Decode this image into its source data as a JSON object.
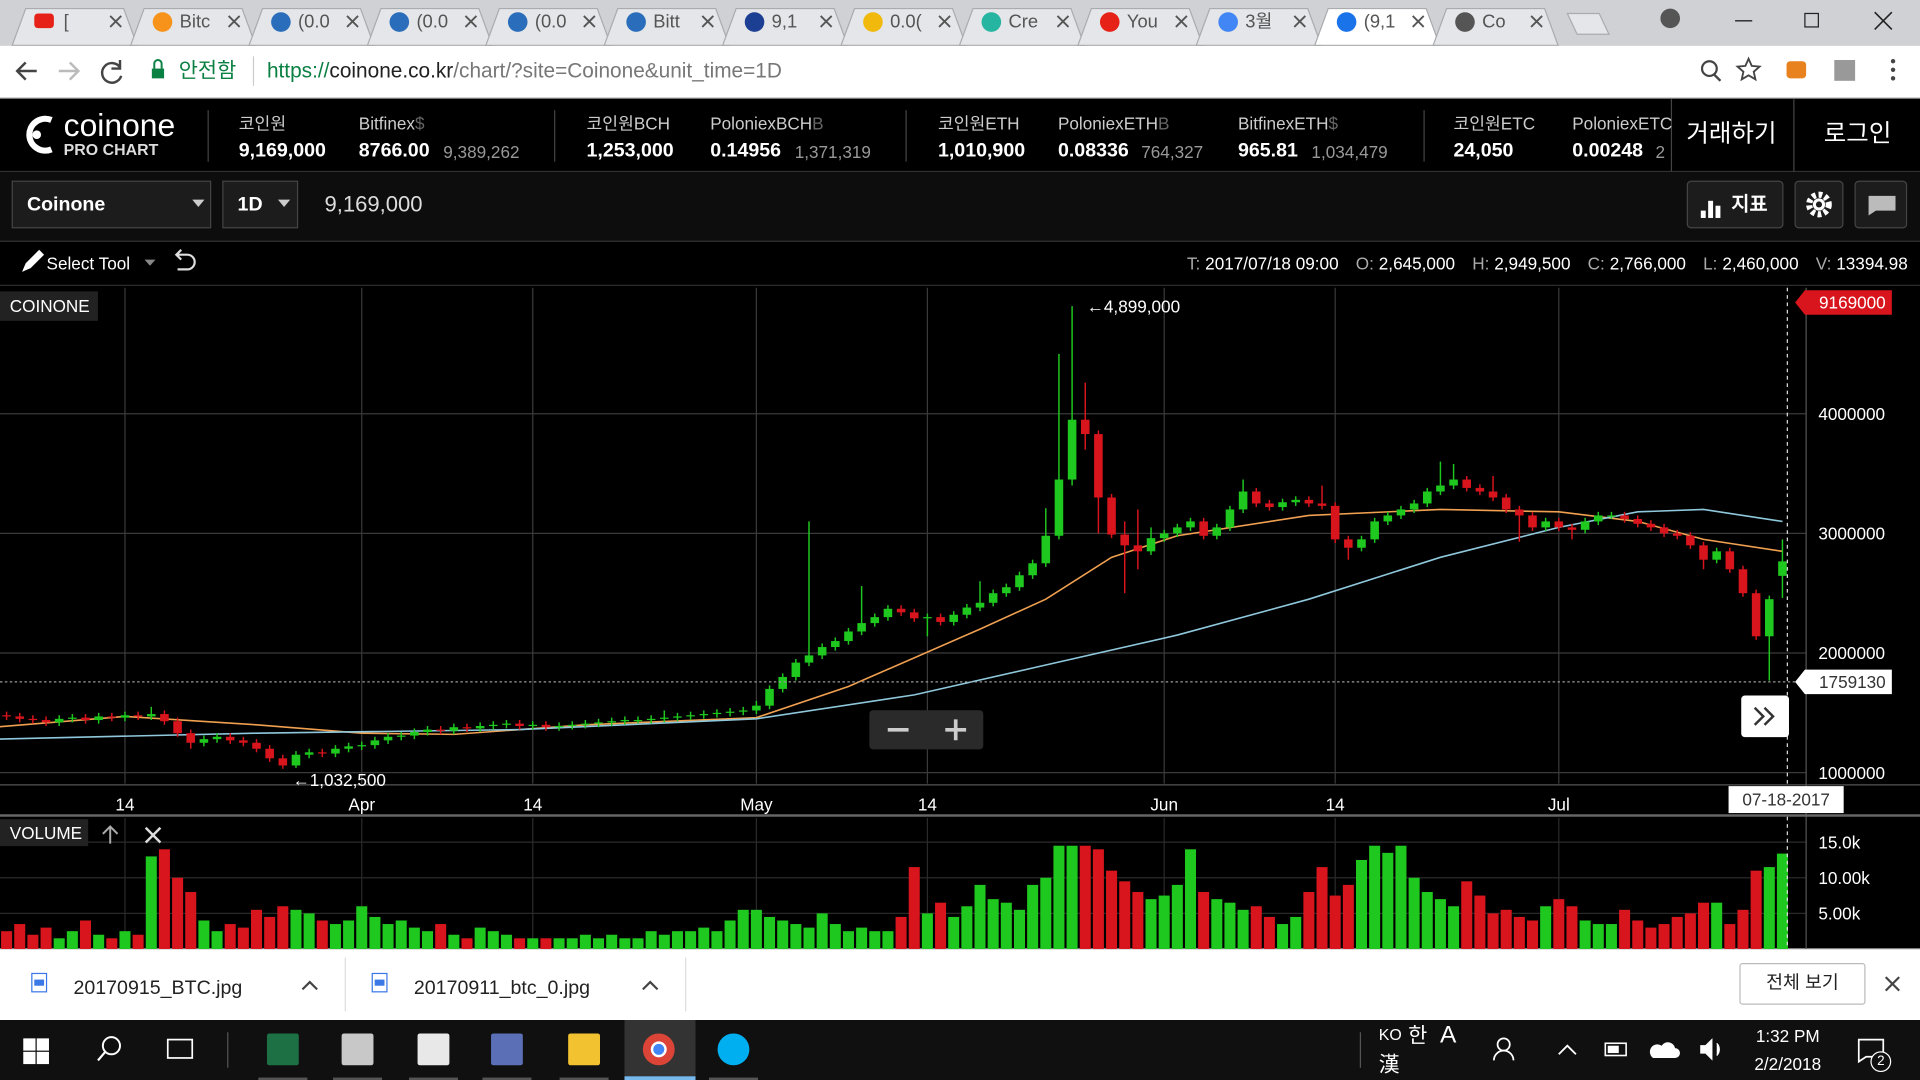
{
  "browser": {
    "tabs": [
      "[",
      "Bitc",
      "(0.0",
      "(0.0",
      "(0.0",
      "Bitt",
      "9,1",
      "0.0(",
      "Cre",
      "You",
      "3월",
      "(9,1",
      "Co"
    ],
    "secure_label": "안전함",
    "url_scheme": "https://",
    "url_host": "coinone.co.kr",
    "url_path": "/chart/?site=Coinone&unit_time=1D"
  },
  "header": {
    "logo": "coinone",
    "sublogo": "PRO CHART",
    "tickers": [
      {
        "name": "코인원",
        "price": "9,169,000"
      },
      {
        "name": "Bitfinex",
        "unit": "$",
        "price": "8766.00",
        "alt": "9,389,262"
      },
      {
        "name": "코인원BCH",
        "price": "1,253,000"
      },
      {
        "name": "PoloniexBCH",
        "unit": "B",
        "price": "0.14956",
        "alt": "1,371,319"
      },
      {
        "name": "코인원ETH",
        "price": "1,010,900"
      },
      {
        "name": "PoloniexETH",
        "unit": "B",
        "price": "0.08336",
        "alt": "764,327"
      },
      {
        "name": "BitfinexETH",
        "unit": "$",
        "price": "965.81",
        "alt": "1,034,479"
      },
      {
        "name": "코인원ETC",
        "price": "24,050"
      },
      {
        "name": "PoloniexETC",
        "price": "0.00248",
        "alt": "2"
      }
    ],
    "trade": "거래하기",
    "login": "로그인"
  },
  "toolbar": {
    "exchange": "Coinone",
    "interval": "1D",
    "price": "9,169,000",
    "indicator": "지표"
  },
  "tools": {
    "select": "Select Tool",
    "info": [
      {
        "key": "T:",
        "value": "2017/07/18 09:00"
      },
      {
        "key": "O:",
        "value": "2,645,000"
      },
      {
        "key": "H:",
        "value": "2,949,500"
      },
      {
        "key": "C:",
        "value": "2,766,000"
      },
      {
        "key": "L:",
        "value": "2,460,000"
      },
      {
        "key": "V:",
        "value": "13394.98"
      }
    ]
  },
  "chart_data": {
    "type": "candlestick",
    "legend": "COINONE",
    "volume_label": "VOLUME",
    "up_color": "#1fc81f",
    "down_color": "#d8141c",
    "xlim": [
      0.5,
      137.8
    ],
    "xticks": [
      {
        "value": 10,
        "label": "14"
      },
      {
        "value": 28,
        "label": "Apr"
      },
      {
        "value": 41,
        "label": "14"
      },
      {
        "value": 58,
        "label": "May"
      },
      {
        "value": 71,
        "label": "14"
      },
      {
        "value": 89,
        "label": "Jun"
      },
      {
        "value": 102,
        "label": "14"
      },
      {
        "value": 119,
        "label": "Jul"
      }
    ],
    "ylim": [
      908000,
      5053000
    ],
    "yticks": [
      1000000,
      2000000,
      3000000,
      4000000
    ],
    "grid": true,
    "open": [
      1470000,
      1480000,
      1470000,
      1450000,
      1440000,
      1420000,
      1450000,
      1460000,
      1440000,
      1470000,
      1460000,
      1480000,
      1470000,
      1490000,
      1430000,
      1330000,
      1250000,
      1280000,
      1300000,
      1270000,
      1250000,
      1200000,
      1120000,
      1060000,
      1150000,
      1170000,
      1160000,
      1200000,
      1220000,
      1230000,
      1270000,
      1300000,
      1310000,
      1340000,
      1360000,
      1350000,
      1380000,
      1370000,
      1390000,
      1400000,
      1410000,
      1390000,
      1400000,
      1380000,
      1390000,
      1400000,
      1410000,
      1420000,
      1430000,
      1440000,
      1440000,
      1450000,
      1460000,
      1470000,
      1480000,
      1490000,
      1500000,
      1510000,
      1520000,
      1560000,
      1700000,
      1800000,
      1920000,
      1980000,
      2050000,
      2100000,
      2180000,
      2250000,
      2300000,
      2370000,
      2340000,
      2290000,
      2300000,
      2260000,
      2320000,
      2380000,
      2420000,
      2500000,
      2550000,
      2650000,
      2750000,
      2980000,
      3450000,
      3950000,
      3830000,
      3300000,
      2990000,
      2900000,
      2850000,
      2960000,
      3000000,
      3050000,
      3100000,
      2980000,
      3050000,
      3200000,
      3350000,
      3250000,
      3220000,
      3260000,
      3280000,
      3250000,
      3230000,
      2950000,
      2880000,
      2950000,
      3100000,
      3150000,
      3200000,
      3250000,
      3350000,
      3400000,
      3450000,
      3380000,
      3350000,
      3300000,
      3200000,
      3150000,
      3050000,
      3100000,
      3050000,
      3030000,
      3100000,
      3150000,
      3150000,
      3120000,
      3080000,
      3050000,
      3000000,
      2980000,
      2900000,
      2780000,
      2850000,
      2700000,
      2500000,
      2140000,
      2645000
    ],
    "high": [
      1510000,
      1510000,
      1500000,
      1480000,
      1470000,
      1480000,
      1490000,
      1490000,
      1500000,
      1500000,
      1510000,
      1510000,
      1550000,
      1520000,
      1460000,
      1360000,
      1310000,
      1330000,
      1330000,
      1300000,
      1280000,
      1230000,
      1150000,
      1180000,
      1200000,
      1200000,
      1230000,
      1250000,
      1260000,
      1300000,
      1330000,
      1340000,
      1370000,
      1390000,
      1390000,
      1410000,
      1410000,
      1420000,
      1430000,
      1440000,
      1440000,
      1430000,
      1430000,
      1420000,
      1430000,
      1440000,
      1450000,
      1460000,
      1470000,
      1470000,
      1480000,
      1520000,
      1500000,
      1510000,
      1520000,
      1530000,
      1540000,
      1550000,
      1600000,
      1730000,
      1830000,
      1950000,
      3100000,
      2080000,
      2130000,
      2210000,
      2560000,
      2330000,
      2400000,
      2400000,
      2370000,
      2330000,
      2330000,
      2350000,
      2410000,
      2600000,
      2530000,
      2580000,
      2680000,
      2780000,
      3210000,
      4500000,
      4899000,
      4260000,
      3860000,
      3330000,
      3100000,
      3200000,
      3050000,
      3030000,
      3080000,
      3130000,
      3130000,
      3080000,
      3230000,
      3450000,
      3380000,
      3280000,
      3290000,
      3310000,
      3310000,
      3400000,
      3260000,
      2980000,
      2980000,
      3130000,
      3180000,
      3230000,
      3280000,
      3380000,
      3600000,
      3580000,
      3480000,
      3410000,
      3480000,
      3330000,
      3230000,
      3180000,
      3130000,
      3130000,
      3080000,
      3130000,
      3180000,
      3180000,
      3180000,
      3150000,
      3110000,
      3080000,
      3030000,
      3010000,
      2930000,
      2880000,
      2880000,
      2730000,
      2530000,
      2480000,
      2949500
    ],
    "low": [
      1440000,
      1440000,
      1420000,
      1410000,
      1390000,
      1390000,
      1420000,
      1410000,
      1410000,
      1430000,
      1430000,
      1440000,
      1440000,
      1400000,
      1300000,
      1200000,
      1220000,
      1250000,
      1240000,
      1220000,
      1170000,
      1090000,
      1032500,
      1040000,
      1120000,
      1130000,
      1130000,
      1170000,
      1190000,
      1200000,
      1240000,
      1270000,
      1280000,
      1310000,
      1320000,
      1320000,
      1340000,
      1340000,
      1360000,
      1370000,
      1360000,
      1360000,
      1350000,
      1350000,
      1360000,
      1370000,
      1380000,
      1390000,
      1400000,
      1410000,
      1410000,
      1420000,
      1430000,
      1440000,
      1450000,
      1460000,
      1470000,
      1480000,
      1490000,
      1530000,
      1670000,
      1770000,
      1890000,
      1950000,
      2020000,
      2070000,
      2150000,
      2220000,
      2270000,
      2310000,
      2260000,
      2140000,
      2230000,
      2230000,
      2290000,
      2350000,
      2390000,
      2470000,
      2520000,
      2620000,
      2720000,
      2950000,
      3400000,
      3700000,
      3000000,
      2960000,
      2500000,
      2700000,
      2820000,
      2930000,
      2970000,
      3020000,
      2950000,
      2950000,
      3020000,
      3170000,
      3220000,
      3190000,
      3190000,
      3230000,
      3220000,
      3200000,
      2920000,
      2780000,
      2850000,
      2920000,
      3070000,
      3120000,
      3170000,
      3220000,
      3320000,
      3370000,
      3350000,
      3320000,
      3270000,
      3170000,
      2930000,
      3020000,
      3020000,
      3020000,
      2950000,
      3000000,
      3070000,
      3120000,
      3090000,
      3050000,
      3020000,
      2970000,
      2950000,
      2870000,
      2700000,
      2750000,
      2670000,
      2470000,
      2110000,
      1770000,
      2460000
    ],
    "close": [
      1480000,
      1470000,
      1450000,
      1440000,
      1420000,
      1450000,
      1460000,
      1440000,
      1470000,
      1460000,
      1480000,
      1470000,
      1490000,
      1430000,
      1330000,
      1250000,
      1280000,
      1300000,
      1270000,
      1250000,
      1200000,
      1120000,
      1060000,
      1150000,
      1170000,
      1160000,
      1200000,
      1220000,
      1230000,
      1270000,
      1300000,
      1310000,
      1340000,
      1360000,
      1350000,
      1380000,
      1370000,
      1390000,
      1400000,
      1410000,
      1390000,
      1400000,
      1380000,
      1390000,
      1400000,
      1410000,
      1420000,
      1430000,
      1440000,
      1440000,
      1450000,
      1460000,
      1470000,
      1480000,
      1490000,
      1500000,
      1510000,
      1520000,
      1560000,
      1700000,
      1800000,
      1920000,
      1980000,
      2050000,
      2100000,
      2180000,
      2250000,
      2300000,
      2370000,
      2340000,
      2290000,
      2300000,
      2260000,
      2320000,
      2380000,
      2420000,
      2500000,
      2550000,
      2650000,
      2750000,
      2980000,
      3450000,
      3950000,
      3830000,
      3300000,
      2990000,
      2900000,
      2850000,
      2960000,
      3000000,
      3050000,
      3100000,
      2980000,
      3050000,
      3200000,
      3350000,
      3250000,
      3220000,
      3260000,
      3280000,
      3250000,
      3230000,
      2950000,
      2880000,
      2950000,
      3100000,
      3150000,
      3200000,
      3250000,
      3350000,
      3400000,
      3450000,
      3380000,
      3350000,
      3300000,
      3200000,
      3150000,
      3050000,
      3100000,
      3050000,
      3030000,
      3100000,
      3150000,
      3150000,
      3120000,
      3080000,
      3050000,
      3000000,
      2980000,
      2900000,
      2780000,
      2850000,
      2700000,
      2500000,
      2140000,
      2450000,
      2766000
    ],
    "series": [
      {
        "color": "#f0a050",
        "x": [
          0,
          10,
          20,
          28,
          35,
          45,
          58,
          65,
          75,
          80,
          85,
          90,
          100,
          110,
          119,
          125,
          130,
          136
        ],
        "values": [
          1380000,
          1470000,
          1400000,
          1330000,
          1320000,
          1400000,
          1460000,
          1720000,
          2200000,
          2450000,
          2800000,
          2980000,
          3150000,
          3200000,
          3180000,
          3100000,
          2950000,
          2850000
        ]
      },
      {
        "color": "#8fc8dc",
        "x": [
          0,
          20,
          40,
          58,
          70,
          80,
          90,
          100,
          110,
          119,
          125,
          130,
          136
        ],
        "values": [
          1280000,
          1330000,
          1360000,
          1450000,
          1650000,
          1900000,
          2150000,
          2450000,
          2800000,
          3050000,
          3180000,
          3200000,
          3100000
        ]
      }
    ],
    "annotations": [
      "←4,899,000",
      "←1,032,500"
    ],
    "last_price": 9169000,
    "crosshair_price": 1759130,
    "crosshair_date": "07-18-2017",
    "volume": [
      1500,
      2500,
      3500,
      2000,
      3000,
      1500,
      2500,
      4000,
      2000,
      1500,
      2500,
      2000,
      13000,
      14000,
      10000,
      8000,
      4000,
      2500,
      3500,
      3000,
      5500,
      4500,
      6000,
      5500,
      5000,
      4000,
      3500,
      4000,
      6000,
      4500,
      3500,
      4000,
      3000,
      2500,
      3500,
      2000,
      1500,
      3000,
      2500,
      2000,
      1500,
      1500,
      1500,
      1500,
      1500,
      2000,
      1500,
      2000,
      1500,
      1500,
      2500,
      2000,
      2500,
      2500,
      3000,
      2500,
      4000,
      5500,
      5500,
      4500,
      4000,
      3500,
      3000,
      5000,
      3500,
      2500,
      3000,
      2500,
      2500,
      4500,
      11500,
      5000,
      6500,
      4500,
      6000,
      9000,
      7000,
      6500,
      5500,
      9000,
      10000,
      14500,
      14500,
      14500,
      14000,
      11000,
      9500,
      8000,
      7000,
      7500,
      9000,
      14000,
      8000,
      7000,
      6500,
      5500,
      6000,
      4500,
      3500,
      4500,
      8000,
      11500,
      7500,
      9000,
      12500,
      14500,
      13500,
      14500,
      10000,
      8000,
      7000,
      6000,
      9500,
      7500,
      5000,
      5500,
      4500,
      4000,
      6000,
      7000,
      6000,
      4000,
      3500,
      3500,
      5500,
      4000,
      3000,
      3500,
      4500,
      5000,
      6500,
      6500,
      3500,
      5500,
      11000,
      11500,
      13394.98
    ],
    "volume_ylim": [
      0,
      18400
    ],
    "volume_yticks": [
      {
        "value": 5000,
        "label": "5.00k"
      },
      {
        "value": 10000,
        "label": "10.00k"
      },
      {
        "value": 15000,
        "label": "15.0k"
      }
    ]
  },
  "downloads": {
    "files": [
      "20170915_BTC.jpg",
      "20170911_btc_0.jpg"
    ],
    "show_all": "전체 보기"
  },
  "taskbar": {
    "lang": "KO",
    "ime": "한",
    "mode": "A",
    "hanja": "漢",
    "time": "1:32 PM",
    "date": "2/2/2018",
    "notifications": "2"
  }
}
